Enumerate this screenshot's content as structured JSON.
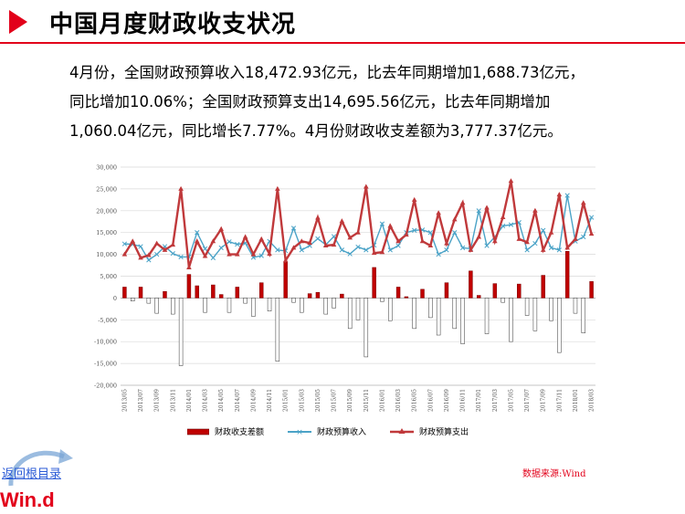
{
  "header": {
    "title": "中国月度财政收支状况"
  },
  "paragraph": {
    "line1": "4月份，全国财政预算收入18,472.93亿元，比去年同期增加1,688.73亿元，",
    "line2": "同比增加10.06%；全国财政预算支出14,695.56亿元，比去年同期增加",
    "line3": "1,060.04亿元，同比增长7.77%。4月份财政收支差额为3,777.37亿元。"
  },
  "footer": {
    "source": "数据来源:Wind",
    "back_link": "返回根目录",
    "logo": "Win.d"
  },
  "colors": {
    "accent": "#e2001a",
    "revenue": "#4ba3c7",
    "expenditure": "#c0393b",
    "balance": "#c00000"
  },
  "chart_data": {
    "type": "bar+line",
    "ylim": [
      -20000,
      30000
    ],
    "yticks": [
      "30,000",
      "25,000",
      "20,000",
      "15,000",
      "10,000",
      "5,000",
      "0",
      "-5,000",
      "-10,000",
      "-15,000",
      "-20,000"
    ],
    "xticks": [
      "2013/05",
      "2013/07",
      "2013/09",
      "2013/11",
      "2014/01",
      "2014/03",
      "2014/05",
      "2014/07",
      "2014/09",
      "2014/11",
      "2015/01",
      "2015/03",
      "2015/05",
      "2015/07",
      "2015/09",
      "2015/11",
      "2016/01",
      "2016/03",
      "2016/05",
      "2016/07",
      "2016/09",
      "2016/11",
      "2017/01",
      "2017/03",
      "2017/05",
      "2017/07",
      "2017/09",
      "2017/11",
      "2018/01",
      "2018/03"
    ],
    "series": [
      {
        "name": "财政收支差额",
        "kind": "bar",
        "values": [
          2500,
          -700,
          2500,
          -1200,
          -3500,
          1500,
          -3700,
          -15500,
          5400,
          2800,
          -3300,
          3000,
          800,
          -3300,
          2500,
          -1200,
          -4200,
          3500,
          -3000,
          -14500,
          8200,
          -1000,
          -3300,
          1000,
          1300,
          -3700,
          -2300,
          900,
          -7000,
          -5000,
          -13500,
          7000,
          -800,
          -5200,
          2500,
          300,
          -7000,
          2000,
          -4500,
          -8500,
          3500,
          -7000,
          -10500,
          6200,
          600,
          -8200,
          3300,
          -1000,
          -10000,
          3200,
          -4000,
          -7500,
          5200,
          -5200,
          -12500,
          10700,
          -3500,
          -8000,
          3777
        ],
        "color": "#c00000"
      },
      {
        "name": "财政预算收入",
        "kind": "line",
        "values": [
          12400,
          12300,
          11800,
          8700,
          10000,
          11800,
          10200,
          9400,
          9400,
          15000,
          11300,
          9200,
          11500,
          12900,
          12300,
          12600,
          9300,
          9700,
          13000,
          11000,
          10800,
          16000,
          11000,
          12000,
          13600,
          12200,
          14100,
          11000,
          10100,
          11700,
          11000,
          12100,
          17000,
          11000,
          12000,
          15000,
          15500,
          15600,
          15000,
          10000,
          11000,
          15000,
          11500,
          11300,
          20000,
          12000,
          14000,
          16500,
          16800,
          17300,
          11000,
          12500,
          15500,
          11500,
          11000,
          23500,
          13000,
          14000,
          18473
        ],
        "color": "#4ba3c7"
      },
      {
        "name": "财政预算支出",
        "kind": "line",
        "values": [
          10000,
          13000,
          9200,
          9800,
          12500,
          11000,
          12200,
          25000,
          7000,
          13000,
          9600,
          13000,
          15800,
          10000,
          10000,
          14000,
          10000,
          13500,
          10100,
          25000,
          8600,
          11500,
          13000,
          12600,
          18400,
          12000,
          12200,
          17600,
          13800,
          15000,
          25500,
          10300,
          10500,
          16500,
          13000,
          14500,
          22500,
          13000,
          12000,
          19500,
          12500,
          18000,
          21800,
          11000,
          14000,
          20700,
          13000,
          18500,
          26800,
          13500,
          12800,
          20000,
          11000,
          15000,
          23700,
          11500,
          13500,
          21800,
          14696
        ],
        "color": "#c0393b"
      }
    ]
  }
}
